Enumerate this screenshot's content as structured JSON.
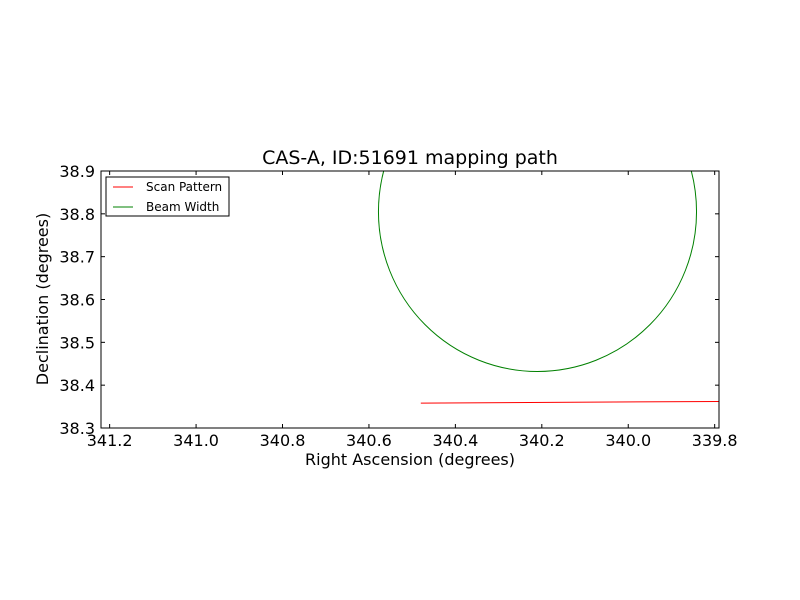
{
  "chart_data": {
    "type": "line",
    "title": "CAS-A, ID:51691 mapping path",
    "xlabel": "Right Ascension (degrees)",
    "ylabel": "Declination (degrees)",
    "xlim": [
      341.22,
      339.79
    ],
    "ylim": [
      38.3,
      38.9
    ],
    "x_inverted": true,
    "xticks": [
      341.2,
      341.0,
      340.8,
      340.6,
      340.4,
      340.2,
      340.0,
      339.8
    ],
    "xtick_labels": [
      "341.2",
      "341.0",
      "340.8",
      "340.6",
      "340.4",
      "340.2",
      "340.0",
      "339.8"
    ],
    "yticks": [
      38.3,
      38.4,
      38.5,
      38.6,
      38.7,
      38.8,
      38.9
    ],
    "ytick_labels": [
      "38.3",
      "38.4",
      "38.5",
      "38.6",
      "38.7",
      "38.8",
      "38.9"
    ],
    "grid": false,
    "legend_position": "top-left",
    "series": [
      {
        "name": "Scan Pattern",
        "kind": "line",
        "color": "#ff0000",
        "x": [
          340.48,
          339.79
        ],
        "y": [
          38.358,
          38.362
        ]
      },
      {
        "name": "Beam Width",
        "kind": "ellipse",
        "color": "#008000",
        "center": [
          340.21,
          38.805
        ],
        "radius_x": 0.368,
        "radius_y": 0.373
      }
    ]
  }
}
